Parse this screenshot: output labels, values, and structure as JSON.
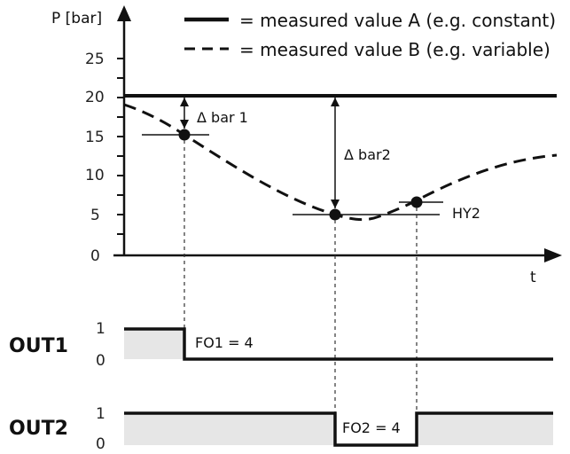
{
  "chart_data": {
    "type": "line",
    "ylabel": "P [bar]",
    "xlabel": "t",
    "ylim": [
      0,
      27
    ],
    "y_ticks": [
      "0",
      "5",
      "10",
      "15",
      "20",
      "25"
    ],
    "series": [
      {
        "name": "= measured value A (e.g. constant)",
        "style": "solid",
        "values": [
          20,
          20
        ]
      },
      {
        "name": "= measured value B (e.g. variable)",
        "style": "dashed"
      }
    ],
    "markers": [
      {
        "label": "Δ bar 1"
      },
      {
        "label": "Δ bar2"
      },
      {
        "label": "HY2"
      }
    ],
    "outputs": [
      {
        "name": "OUT1",
        "levels": [
          "1",
          "0"
        ],
        "annotation": "FO1 = 4"
      },
      {
        "name": "OUT2",
        "levels": [
          "1",
          "0"
        ],
        "annotation": "FO2 = 4"
      }
    ]
  }
}
